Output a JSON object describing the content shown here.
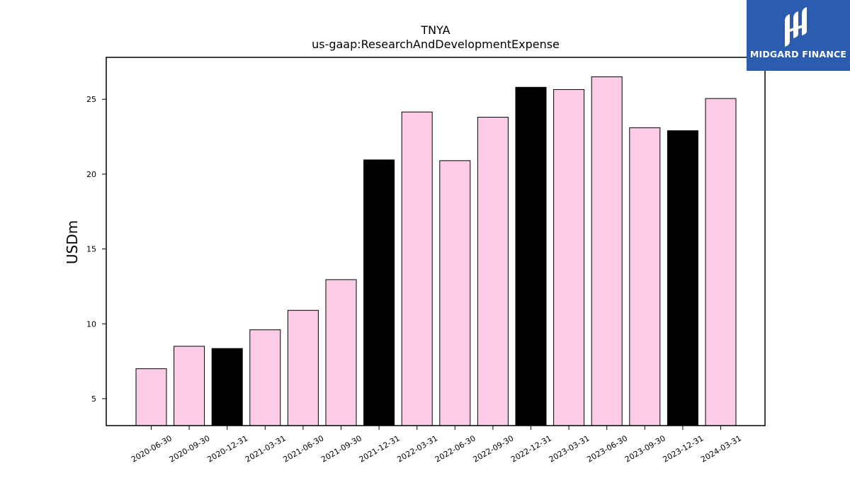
{
  "logo": {
    "text": "MIDGARD FINANCE",
    "bg_color": "#2a5db0"
  },
  "chart_data": {
    "type": "bar",
    "title": "TNYA",
    "subtitle": "us-gaap:ResearchAndDevelopmentExpense",
    "xlabel": "",
    "ylabel": "USDm",
    "ylim": [
      3.2,
      27.8
    ],
    "yticks": [
      5,
      10,
      15,
      20,
      25
    ],
    "grid": false,
    "categories": [
      "2020-06-30",
      "2020-09-30",
      "2020-12-31",
      "2021-03-31",
      "2021-06-30",
      "2021-09-30",
      "2021-12-31",
      "2022-03-31",
      "2022-06-30",
      "2022-09-30",
      "2022-12-31",
      "2023-03-31",
      "2023-06-30",
      "2023-09-30",
      "2023-12-31",
      "2024-03-31"
    ],
    "values": [
      7.0,
      8.5,
      8.35,
      9.6,
      10.9,
      12.95,
      20.95,
      24.15,
      20.9,
      23.8,
      25.8,
      25.65,
      26.5,
      23.1,
      22.9,
      25.05
    ],
    "colors": [
      "#fccce6",
      "#fccce6",
      "#000000",
      "#fccce6",
      "#fccce6",
      "#fccce6",
      "#000000",
      "#fccce6",
      "#fccce6",
      "#fccce6",
      "#000000",
      "#fccce6",
      "#fccce6",
      "#fccce6",
      "#000000",
      "#fccce6"
    ]
  }
}
